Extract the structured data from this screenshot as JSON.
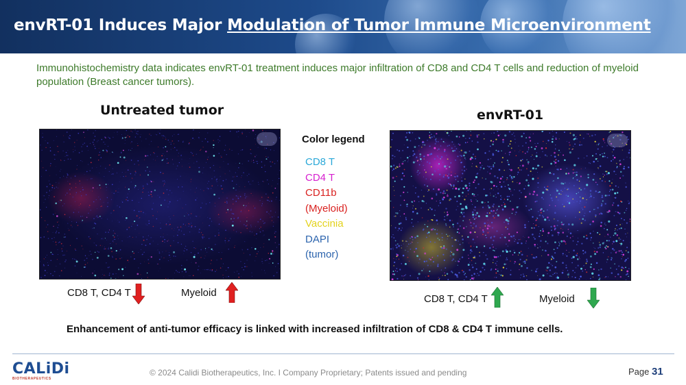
{
  "header": {
    "title_plain": "envRT-01 Induces Major ",
    "title_underlined": "Modulation of Tumor Immune Microenvironment"
  },
  "subtitle": "Immunohistochemistry data indicates envRT-01 treatment induces major infiltration of CD8 and CD4 T cells and reduction of myeloid population  (Breast cancer tumors).",
  "panels": {
    "untreated": {
      "title": "Untreated tumor",
      "left_label": "CD8 T, CD4 T",
      "right_label": "Myeloid"
    },
    "treated": {
      "title": "envRT-01",
      "left_label": "CD8 T, CD4 T",
      "right_label": "Myeloid"
    }
  },
  "legend": {
    "title": "Color legend",
    "items": [
      {
        "text": "CD8 T",
        "color": "#2aa8d8"
      },
      {
        "text": "CD4 T",
        "color": "#d61fcf"
      },
      {
        "text": "CD11b",
        "color": "#d9211f"
      },
      {
        "text": "(Myeloid)",
        "color": "#d9211f"
      },
      {
        "text": "Vaccinia",
        "color": "#e3d21c"
      },
      {
        "text": "DAPI",
        "color": "#2b63ad"
      },
      {
        "text": "(tumor)",
        "color": "#2b63ad"
      }
    ]
  },
  "arrows": {
    "down_color": "#e02020",
    "up_red_color": "#e02020",
    "up_green_color": "#2fa84f",
    "down_green_color": "#2fa84f"
  },
  "conclusion": "Enhancement of anti-tumor efficacy is linked with increased infiltration of CD8 & CD4 T immune cells.",
  "footer": {
    "logo": "CALiDi",
    "logo_sub": "BIOTHERAPEUTICS",
    "copyright": "© 2024 Calidi Biotherapeutics, Inc. I  Company Proprietary; Patents issued and pending",
    "page_label": "Page",
    "page_number": "31"
  }
}
